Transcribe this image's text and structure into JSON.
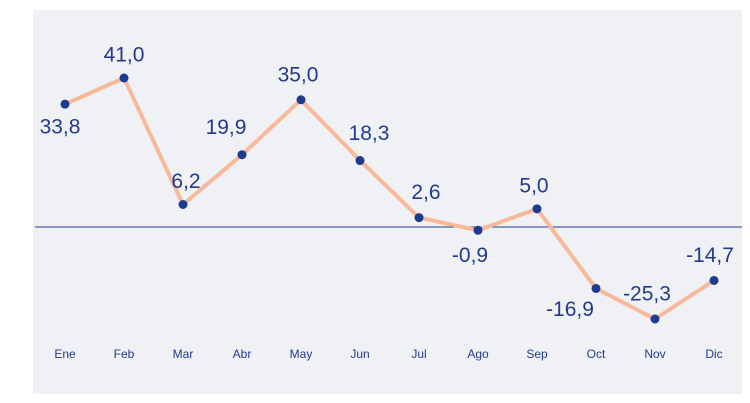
{
  "chart_data": {
    "type": "line",
    "categories": [
      "Ene",
      "Feb",
      "Mar",
      "Abr",
      "May",
      "Jun",
      "Jul",
      "Ago",
      "Sep",
      "Oct",
      "Nov",
      "Dic"
    ],
    "values": [
      33.8,
      41.0,
      6.2,
      19.9,
      35.0,
      18.3,
      2.6,
      -0.9,
      5.0,
      -16.9,
      -25.3,
      -14.7
    ],
    "value_labels": [
      "33,8",
      "41,0",
      "6,2",
      "19,9",
      "35,0",
      "18,3",
      "2,6",
      "-0,9",
      "5,0",
      "-16,9",
      "-25,3",
      "-14,7"
    ],
    "color": "#f8b99b",
    "marker_color": "#1d3b8f"
  }
}
